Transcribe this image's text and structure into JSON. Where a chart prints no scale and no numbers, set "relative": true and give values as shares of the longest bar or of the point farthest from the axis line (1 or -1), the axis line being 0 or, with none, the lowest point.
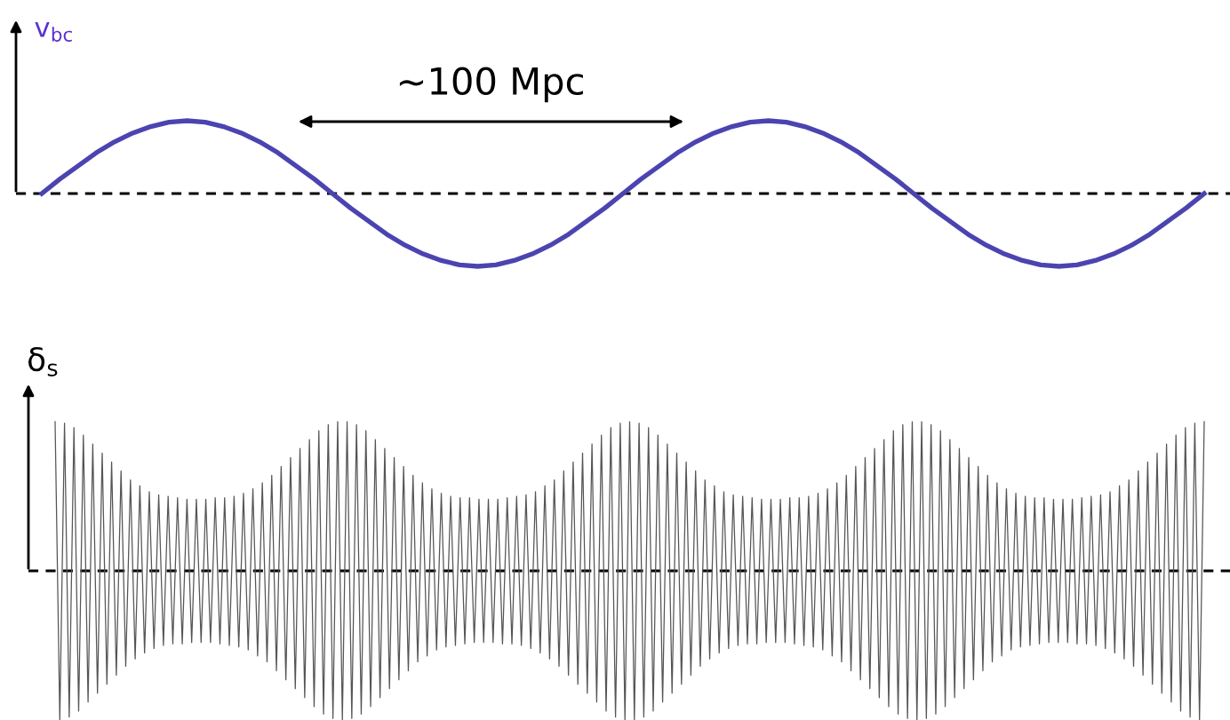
{
  "chart_data": [
    {
      "type": "line",
      "relative": true,
      "ylabel": "v$_{bc}$",
      "annotations": [
        "~100 Mpc"
      ],
      "categories": [
        null,
        null,
        null,
        null,
        null,
        null,
        null,
        null,
        null,
        null,
        null,
        null,
        null,
        null,
        null,
        null,
        null,
        null,
        null,
        null,
        null,
        null,
        null,
        null,
        null,
        null,
        null,
        null,
        null,
        null,
        null,
        null,
        null,
        null,
        null,
        null,
        null,
        null,
        null,
        null,
        null,
        null,
        null,
        null,
        null,
        null,
        null,
        null,
        null,
        null,
        null,
        null,
        null,
        null,
        null,
        null,
        null,
        null,
        null,
        null,
        null,
        null,
        null,
        null,
        null
      ],
      "ref_lines": [
        {
          "axis": "y",
          "value": 0,
          "color": "#000000",
          "line_style": "dashed"
        }
      ],
      "series": [
        {
          "color": "#4b44b0",
          "line_style": "solid",
          "values": [
            0,
            0.2,
            0.38,
            0.56,
            0.71,
            0.83,
            0.92,
            0.98,
            1,
            0.98,
            0.92,
            0.83,
            0.71,
            0.56,
            0.38,
            0.2,
            0,
            -0.2,
            -0.38,
            -0.56,
            -0.71,
            -0.83,
            -0.92,
            -0.98,
            -1,
            -0.98,
            -0.92,
            -0.83,
            -0.71,
            -0.56,
            -0.38,
            -0.2,
            0,
            0.2,
            0.38,
            0.56,
            0.71,
            0.83,
            0.92,
            0.98,
            1,
            0.98,
            0.92,
            0.83,
            0.71,
            0.56,
            0.38,
            0.2,
            0,
            -0.2,
            -0.38,
            -0.56,
            -0.71,
            -0.83,
            -0.92,
            -0.98,
            -1,
            -0.98,
            -0.92,
            -0.83,
            -0.71,
            -0.56,
            -0.38,
            -0.2,
            0
          ]
        }
      ]
    },
    {
      "type": "line",
      "relative": true,
      "ylabel": "δ$_{s}$",
      "categories": [
        null,
        null,
        null,
        null,
        null,
        null,
        null,
        null,
        null,
        null,
        null,
        null,
        null,
        null,
        null,
        null,
        null,
        null,
        null,
        null,
        null,
        null,
        null,
        null,
        null,
        null,
        null,
        null,
        null,
        null,
        null,
        null,
        null,
        null,
        null,
        null,
        null,
        null,
        null,
        null,
        null,
        null,
        null,
        null,
        null,
        null,
        null,
        null,
        null,
        null,
        null,
        null,
        null,
        null,
        null,
        null,
        null,
        null,
        null,
        null,
        null,
        null,
        null,
        null,
        null,
        null,
        null,
        null,
        null,
        null,
        null,
        null,
        null,
        null,
        null,
        null,
        null,
        null,
        null,
        null,
        null,
        null,
        null,
        null,
        null,
        null,
        null,
        null,
        null,
        null,
        null,
        null,
        null,
        null,
        null,
        null,
        null,
        null,
        null,
        null,
        null,
        null,
        null,
        null,
        null,
        null,
        null,
        null,
        null,
        null,
        null,
        null,
        null,
        null,
        null,
        null,
        null,
        null,
        null,
        null,
        null,
        null,
        null,
        null,
        null,
        null,
        null,
        null,
        null,
        null,
        null,
        null,
        null,
        null,
        null,
        null,
        null,
        null,
        null,
        null,
        null,
        null,
        null,
        null,
        null,
        null,
        null,
        null,
        null,
        null,
        null,
        null,
        null,
        null,
        null,
        null,
        null,
        null,
        null,
        null,
        null,
        null,
        null,
        null,
        null,
        null,
        null,
        null,
        null,
        null,
        null,
        null,
        null,
        null,
        null,
        null,
        null,
        null,
        null,
        null,
        null,
        null,
        null,
        null,
        null,
        null,
        null,
        null,
        null,
        null,
        null,
        null,
        null,
        null,
        null,
        null,
        null,
        null,
        null,
        null,
        null,
        null,
        null,
        null,
        null,
        null,
        null,
        null,
        null,
        null,
        null,
        null,
        null,
        null,
        null,
        null,
        null,
        null,
        null,
        null,
        null,
        null,
        null,
        null,
        null,
        null,
        null,
        null,
        null,
        null,
        null,
        null,
        null,
        null,
        null,
        null,
        null,
        null,
        null,
        null,
        null,
        null,
        null,
        null,
        null
      ],
      "ref_lines": [
        {
          "axis": "y",
          "value": 0,
          "color": "#000000",
          "line_style": "dashed"
        }
      ],
      "series": [
        {
          "color": "#555555",
          "line_style": "solid",
          "values": [
            1.0,
            -1.0,
            0.99,
            -0.98,
            0.96,
            -0.94,
            0.91,
            -0.88,
            0.85,
            -0.82,
            0.79,
            -0.76,
            0.73,
            -0.7,
            0.67,
            -0.64,
            0.61,
            -0.59,
            0.57,
            -0.55,
            0.53,
            -0.52,
            0.51,
            -0.5,
            0.5,
            -0.49,
            0.49,
            -0.49,
            0.48,
            -0.48,
            0.48,
            -0.48,
            0.48,
            -0.48,
            0.49,
            -0.49,
            0.49,
            -0.5,
            0.5,
            -0.51,
            0.52,
            -0.53,
            0.55,
            -0.57,
            0.59,
            -0.61,
            0.64,
            -0.67,
            0.7,
            -0.73,
            0.76,
            -0.79,
            0.82,
            -0.85,
            0.88,
            -0.91,
            0.94,
            -0.96,
            0.98,
            -0.99,
            1.0,
            -1.0,
            1.0,
            -0.99,
            0.98,
            -0.96,
            0.94,
            -0.91,
            0.88,
            -0.85,
            0.82,
            -0.79,
            0.76,
            -0.73,
            0.7,
            -0.67,
            0.64,
            -0.61,
            0.59,
            -0.57,
            0.55,
            -0.53,
            0.52,
            -0.51,
            0.5,
            -0.5,
            0.49,
            -0.49,
            0.49,
            -0.48,
            0.48,
            -0.48,
            0.48,
            -0.48,
            0.48,
            -0.49,
            0.49,
            -0.49,
            0.5,
            -0.5,
            0.51,
            -0.52,
            0.53,
            -0.55,
            0.57,
            -0.59,
            0.61,
            -0.64,
            0.67,
            -0.7,
            0.73,
            -0.76,
            0.79,
            -0.82,
            0.85,
            -0.88,
            0.91,
            -0.94,
            0.96,
            -0.98,
            0.99,
            -1.0,
            1.0,
            -1.0,
            0.99,
            -0.98,
            0.96,
            -0.94,
            0.91,
            -0.88,
            0.85,
            -0.82,
            0.79,
            -0.76,
            0.73,
            -0.7,
            0.67,
            -0.64,
            0.61,
            -0.59,
            0.57,
            -0.55,
            0.53,
            -0.52,
            0.51,
            -0.5,
            0.5,
            -0.49,
            0.49,
            -0.49,
            0.48,
            -0.48,
            0.48,
            -0.48,
            0.48,
            -0.48,
            0.49,
            -0.49,
            0.49,
            -0.5,
            0.5,
            -0.51,
            0.52,
            -0.53,
            0.55,
            -0.57,
            0.59,
            -0.61,
            0.64,
            -0.67,
            0.7,
            -0.73,
            0.76,
            -0.79,
            0.82,
            -0.85,
            0.88,
            -0.91,
            0.94,
            -0.96,
            0.98,
            -0.99,
            1.0,
            -1.0,
            1.0,
            -0.99,
            0.98,
            -0.96,
            0.94,
            -0.91,
            0.88,
            -0.85,
            0.82,
            -0.79,
            0.76,
            -0.73,
            0.7,
            -0.67,
            0.64,
            -0.61,
            0.59,
            -0.57,
            0.55,
            -0.53,
            0.52,
            -0.51,
            0.5,
            -0.5,
            0.49,
            -0.49,
            0.49,
            -0.48,
            0.48,
            -0.48,
            0.48,
            -0.48,
            0.48,
            -0.49,
            0.49,
            -0.49,
            0.5,
            -0.5,
            0.51,
            -0.52,
            0.53,
            -0.55,
            0.57,
            -0.59,
            0.61,
            -0.64,
            0.67,
            -0.7,
            0.73,
            -0.76,
            0.79,
            -0.82,
            0.85,
            -0.88,
            0.91,
            -0.94,
            0.96,
            -0.98,
            0.99,
            -1.0,
            1.0
          ]
        }
      ]
    }
  ]
}
